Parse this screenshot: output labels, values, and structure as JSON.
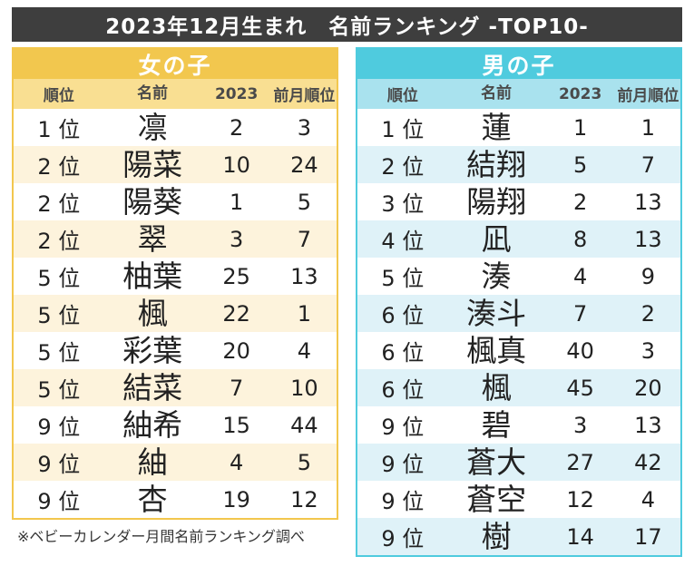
{
  "title": "2023年12月生まれ　名前ランキング -TOP10-",
  "footer_note": "※ベビーカレンダー月間名前ランキング調べ",
  "colors": {
    "title_bar": "#3E3E3E",
    "girls_accent": "#F2C74E",
    "girls_header_row": "#F9DF92",
    "girls_alt_row": "#FDF3DC",
    "boys_accent": "#4FCBDE",
    "boys_header_row": "#A9E2EE",
    "boys_alt_row": "#DFF2F8"
  },
  "chart_data": [
    {
      "type": "table",
      "title": "女の子",
      "columns": [
        "順位",
        "名前",
        "2023",
        "前月順位"
      ],
      "rows": [
        {
          "rank": "1 位",
          "name": "凛",
          "y2023": "2",
          "prev": "3"
        },
        {
          "rank": "2 位",
          "name": "陽菜",
          "y2023": "10",
          "prev": "24"
        },
        {
          "rank": "2 位",
          "name": "陽葵",
          "y2023": "1",
          "prev": "5"
        },
        {
          "rank": "2 位",
          "name": "翠",
          "y2023": "3",
          "prev": "7"
        },
        {
          "rank": "5 位",
          "name": "柚葉",
          "y2023": "25",
          "prev": "13"
        },
        {
          "rank": "5 位",
          "name": "楓",
          "y2023": "22",
          "prev": "1"
        },
        {
          "rank": "5 位",
          "name": "彩葉",
          "y2023": "20",
          "prev": "4"
        },
        {
          "rank": "5 位",
          "name": "結菜",
          "y2023": "7",
          "prev": "10"
        },
        {
          "rank": "9 位",
          "name": "紬希",
          "y2023": "15",
          "prev": "44"
        },
        {
          "rank": "9 位",
          "name": "紬",
          "y2023": "4",
          "prev": "5"
        },
        {
          "rank": "9 位",
          "name": "杏",
          "y2023": "19",
          "prev": "12"
        }
      ]
    },
    {
      "type": "table",
      "title": "男の子",
      "columns": [
        "順位",
        "名前",
        "2023",
        "前月順位"
      ],
      "rows": [
        {
          "rank": "1 位",
          "name": "蓮",
          "y2023": "1",
          "prev": "1"
        },
        {
          "rank": "2 位",
          "name": "結翔",
          "y2023": "5",
          "prev": "7"
        },
        {
          "rank": "3 位",
          "name": "陽翔",
          "y2023": "2",
          "prev": "13"
        },
        {
          "rank": "4 位",
          "name": "凪",
          "y2023": "8",
          "prev": "13"
        },
        {
          "rank": "5 位",
          "name": "湊",
          "y2023": "4",
          "prev": "9"
        },
        {
          "rank": "6 位",
          "name": "湊斗",
          "y2023": "7",
          "prev": "2"
        },
        {
          "rank": "6 位",
          "name": "楓真",
          "y2023": "40",
          "prev": "3"
        },
        {
          "rank": "6 位",
          "name": "楓",
          "y2023": "45",
          "prev": "20"
        },
        {
          "rank": "9 位",
          "name": "碧",
          "y2023": "3",
          "prev": "13"
        },
        {
          "rank": "9 位",
          "name": "蒼大",
          "y2023": "27",
          "prev": "42"
        },
        {
          "rank": "9 位",
          "name": "蒼空",
          "y2023": "12",
          "prev": "4"
        },
        {
          "rank": "9 位",
          "name": "樹",
          "y2023": "14",
          "prev": "17"
        }
      ]
    }
  ]
}
